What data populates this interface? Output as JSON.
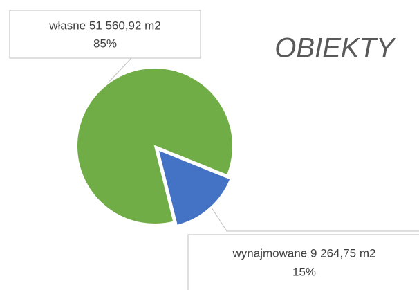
{
  "chart_data": {
    "type": "pie",
    "title": "OBIEKTY",
    "categories": [
      "własne 51 560,92 m2",
      "wynajmowane 9 264,75 m2"
    ],
    "values": [
      85,
      15
    ],
    "value_labels": [
      "85%",
      "15%"
    ],
    "colors": [
      "#70ad47",
      "#4472c4"
    ]
  }
}
